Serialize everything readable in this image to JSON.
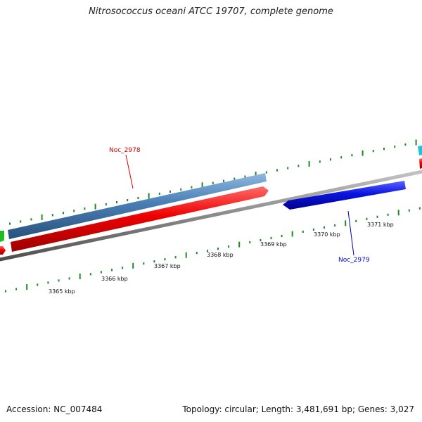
{
  "title": "Nitrosococcus oceani ATCC 19707, complete genome",
  "footer": {
    "accession": "Accession: NC_007484",
    "summary": "Topology: circular; Length: 3,481,691 bp; Genes: 3,027"
  },
  "genes": [
    {
      "id": "Noc_2978",
      "label_color": "#d40000"
    },
    {
      "id": "Noc_2979",
      "label_color": "#0000cc"
    }
  ],
  "scale_labels": [
    "3365 kbp",
    "3366 kbp",
    "3367 kbp",
    "3368 kbp",
    "3369 kbp",
    "3370 kbp",
    "3371 kbp"
  ],
  "colors": {
    "forward_gene": "#ee0000",
    "reverse_gene": "#0a14e0",
    "cds_blue": "#4a7fb5",
    "backbone": "#8a8a8a",
    "ticks": "#1f8a1f",
    "edge_cyan": "#19c8d2",
    "edge_green": "#22bb22"
  }
}
